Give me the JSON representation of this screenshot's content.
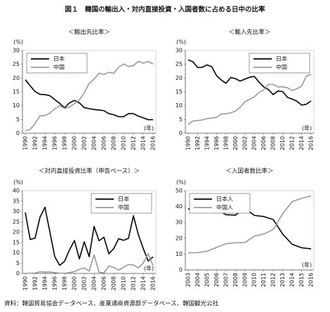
{
  "title": "図１　韓国の輸出入・対内直接投資・入国者数に占める日中の比率",
  "source": "資料：韓国貿易協会データベース、産業通商資源部データベース、韓国観光公社",
  "chart_data": [
    {
      "type": "line",
      "title": "＜輸出先比率＞",
      "y_label": "(%)",
      "x_label": "(年)",
      "x": [
        1990,
        1991,
        1992,
        1993,
        1994,
        1995,
        1996,
        1997,
        1998,
        1999,
        2000,
        2001,
        2002,
        2003,
        2004,
        2005,
        2006,
        2007,
        2008,
        2009,
        2010,
        2011,
        2012,
        2013,
        2014,
        2015,
        2016
      ],
      "xlim": [
        1990,
        2016
      ],
      "xticks": [
        1990,
        1992,
        1994,
        1996,
        1998,
        2000,
        2002,
        2004,
        2006,
        2008,
        2010,
        2012,
        2014,
        2016
      ],
      "ylim": [
        0,
        30
      ],
      "yticks": [
        0,
        5,
        10,
        15,
        20,
        25,
        30
      ],
      "legend": "top-left",
      "series": [
        {
          "name": "日本",
          "color": "#000000",
          "values": [
            19.4,
            17.2,
            15.1,
            14.1,
            14.0,
            13.6,
            12.2,
            10.8,
            9.2,
            11.0,
            11.9,
            11.0,
            9.3,
            8.9,
            8.6,
            8.4,
            8.2,
            7.1,
            6.7,
            6.0,
            6.0,
            7.1,
            7.1,
            6.2,
            5.6,
            4.9,
            4.9
          ]
        },
        {
          "name": "中国",
          "color": "#999999",
          "values": [
            0.9,
            1.4,
            3.5,
            6.3,
            6.4,
            7.3,
            8.8,
            10.0,
            9.0,
            9.5,
            10.7,
            12.1,
            14.6,
            18.1,
            19.6,
            21.8,
            21.3,
            22.1,
            21.7,
            23.9,
            25.1,
            24.2,
            24.5,
            26.1,
            25.4,
            26.0,
            25.1
          ]
        }
      ]
    },
    {
      "type": "line",
      "title": "＜輸入先比率＞",
      "y_label": "(%)",
      "x_label": "(年)",
      "x": [
        1990,
        1991,
        1992,
        1993,
        1994,
        1995,
        1996,
        1997,
        1998,
        1999,
        2000,
        2001,
        2002,
        2003,
        2004,
        2005,
        2006,
        2007,
        2008,
        2009,
        2010,
        2011,
        2012,
        2013,
        2014,
        2015,
        2016
      ],
      "xlim": [
        1990,
        2016
      ],
      "xticks": [
        1990,
        1992,
        1994,
        1996,
        1998,
        2000,
        2002,
        2004,
        2006,
        2008,
        2010,
        2012,
        2014,
        2016
      ],
      "ylim": [
        0,
        30
      ],
      "yticks": [
        0,
        5,
        10,
        15,
        20,
        25,
        30
      ],
      "legend": "top-right",
      "series": [
        {
          "name": "日本",
          "color": "#000000",
          "values": [
            26.6,
            25.9,
            23.8,
            23.9,
            24.8,
            24.1,
            20.9,
            19.3,
            18.1,
            20.2,
            19.8,
            18.9,
            19.6,
            20.3,
            20.6,
            18.5,
            16.8,
            15.8,
            14.0,
            15.3,
            15.1,
            13.0,
            12.4,
            11.6,
            10.2,
            10.5,
            11.7
          ]
        },
        {
          "name": "中国",
          "color": "#999999",
          "values": [
            3.2,
            4.4,
            4.6,
            4.8,
            5.3,
            5.5,
            5.7,
            7.0,
            7.0,
            7.4,
            8.0,
            9.4,
            11.4,
            12.3,
            13.2,
            14.8,
            15.7,
            17.7,
            17.7,
            16.8,
            16.8,
            16.5,
            15.5,
            16.1,
            17.1,
            20.7,
            21.4
          ]
        }
      ]
    },
    {
      "type": "line",
      "title": "＜対内直接投資比率（申告ベース）＞",
      "y_label": "(%)",
      "x_label": "(年)",
      "x": [
        1990,
        1991,
        1992,
        1993,
        1994,
        1995,
        1996,
        1997,
        1998,
        1999,
        2000,
        2001,
        2002,
        2003,
        2004,
        2005,
        2006,
        2007,
        2008,
        2009,
        2010,
        2011,
        2012,
        2013,
        2014,
        2015,
        2016
      ],
      "xlim": [
        1990,
        2016
      ],
      "xticks": [
        1990,
        1992,
        1994,
        1996,
        1998,
        2000,
        2002,
        2004,
        2006,
        2008,
        2010,
        2012,
        2014,
        2016
      ],
      "ylim": [
        0,
        40
      ],
      "yticks": [
        0,
        5,
        10,
        15,
        20,
        25,
        30,
        35,
        40
      ],
      "legend": "top-right",
      "series": [
        {
          "name": "日本",
          "color": "#000000",
          "values": [
            29.5,
            16.4,
            17.1,
            27.2,
            32.0,
            20.1,
            8.1,
            3.9,
            5.9,
            11.4,
            15.9,
            7.0,
            15.3,
            8.1,
            22.7,
            15.8,
            17.5,
            9.5,
            12.0,
            16.8,
            16.0,
            17.0,
            27.9,
            18.8,
            12.1,
            6.0,
            8.0
          ]
        },
        {
          "name": "中国",
          "color": "#999999",
          "values": [
            0.0,
            0.1,
            0.2,
            0.8,
            0.6,
            0.7,
            0.4,
            0.1,
            0.1,
            0.4,
            0.9,
            2.0,
            2.7,
            1.1,
            9.0,
            0.6,
            0.3,
            3.6,
            2.9,
            1.6,
            3.0,
            4.3,
            4.1,
            2.7,
            5.0,
            9.6,
            3.8
          ]
        }
      ]
    },
    {
      "type": "line",
      "title": "＜入国者数比率＞",
      "y_label": "(%)",
      "x_label": "(年)",
      "x": [
        2003,
        2004,
        2005,
        2006,
        2007,
        2008,
        2009,
        2010,
        2011,
        2012,
        2013,
        2014,
        2015,
        2016
      ],
      "xlim": [
        2003,
        2016
      ],
      "xticks": [
        2003,
        2004,
        2005,
        2006,
        2007,
        2008,
        2009,
        2010,
        2011,
        2012,
        2013,
        2014,
        2015,
        2016
      ],
      "ylim": [
        0,
        50
      ],
      "yticks": [
        0,
        10,
        20,
        30,
        40,
        50
      ],
      "legend": "top-left",
      "series": [
        {
          "name": "日本人",
          "color": "#000000",
          "values": [
            38.2,
            41.8,
            40.4,
            38.3,
            34.8,
            34.6,
            39.0,
            34.4,
            33.7,
            31.8,
            22.6,
            16.2,
            14.0,
            13.3
          ]
        },
        {
          "name": "中国人",
          "color": "#999999",
          "values": [
            10.8,
            10.9,
            11.8,
            14.2,
            16.5,
            17.2,
            17.3,
            21.3,
            22.7,
            25.5,
            35.5,
            43.1,
            45.2,
            46.8
          ]
        }
      ]
    }
  ]
}
